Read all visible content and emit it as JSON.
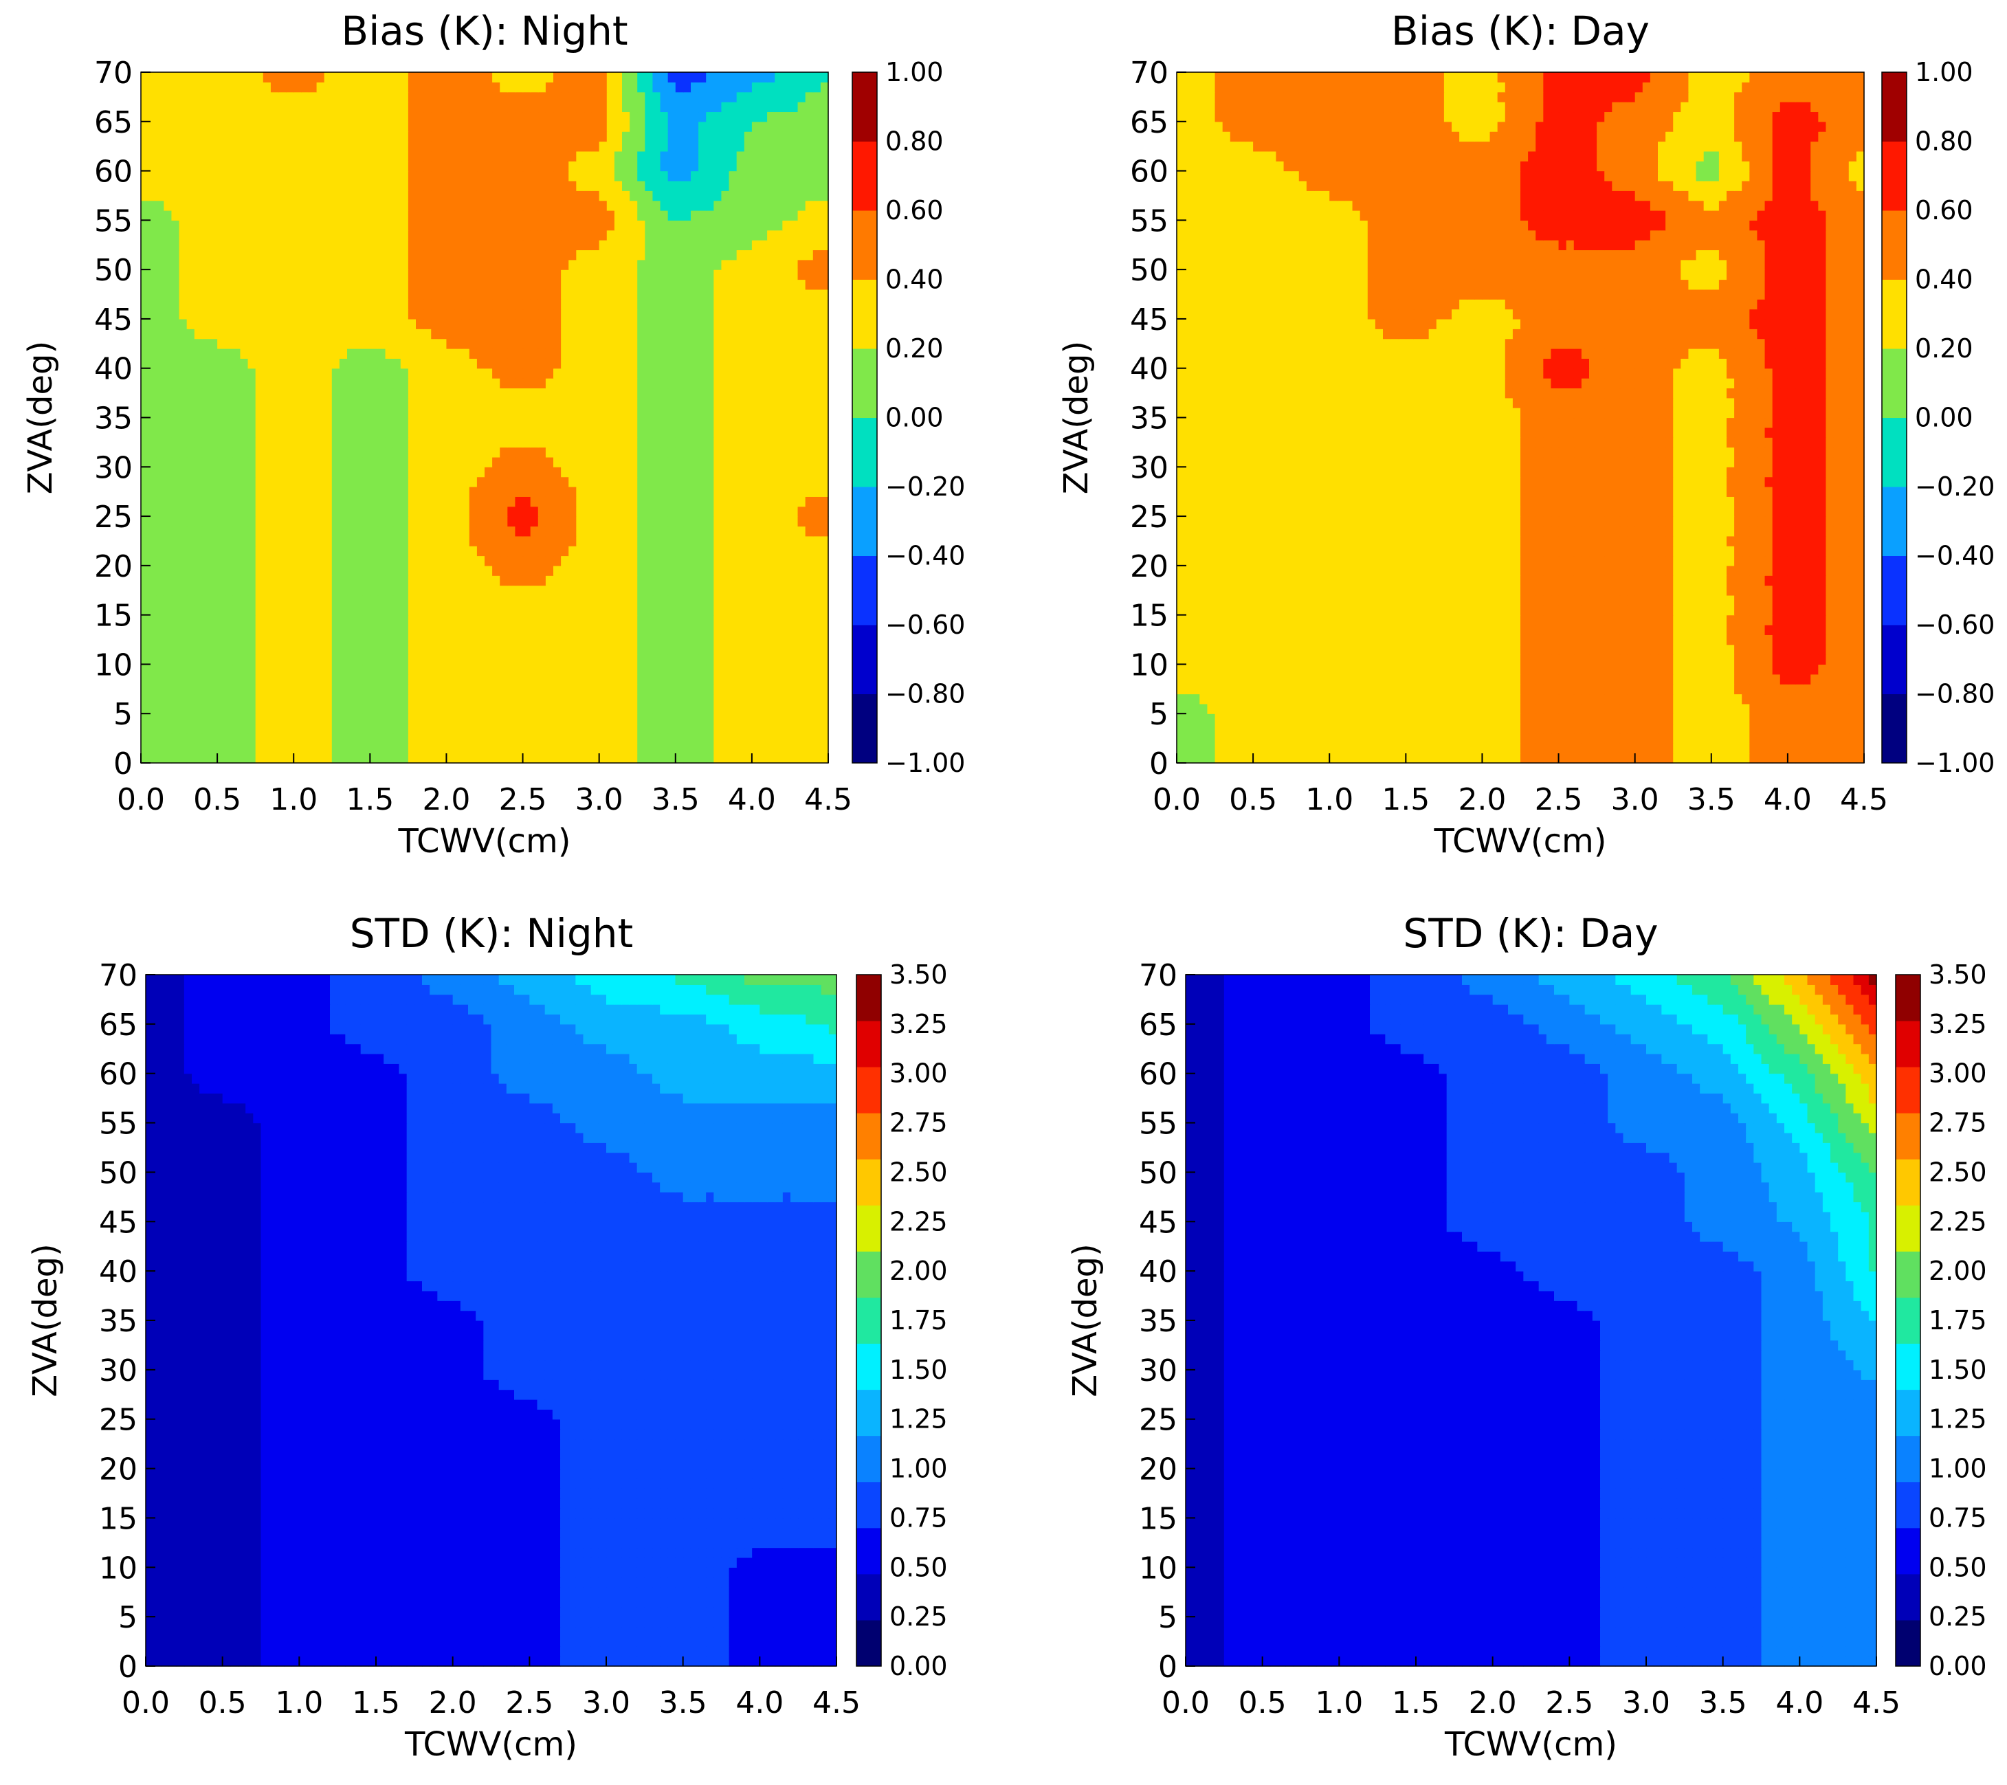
{
  "chart_data": [
    {
      "type": "heatmap",
      "title": "Bias (K): Night",
      "xlabel": "TCWV(cm)",
      "ylabel": "ZVA(deg)",
      "xlim": [
        0,
        4.5
      ],
      "ylim": [
        0,
        70
      ],
      "x": [
        0.0,
        0.5,
        1.0,
        1.5,
        2.0,
        2.5,
        3.0,
        3.5,
        4.0,
        4.5
      ],
      "y": [
        0,
        5,
        10,
        15,
        20,
        25,
        30,
        35,
        40,
        45,
        50,
        55,
        60,
        65,
        70
      ],
      "x_ticks": [
        "0.0",
        "0.5",
        "1.0",
        "1.5",
        "2.0",
        "2.5",
        "3.0",
        "3.5",
        "4.0",
        "4.5"
      ],
      "y_ticks": [
        "0",
        "5",
        "10",
        "15",
        "20",
        "25",
        "30",
        "35",
        "40",
        "45",
        "50",
        "55",
        "60",
        "65",
        "70"
      ],
      "levels": [
        -1.0,
        -0.8,
        -0.6,
        -0.4,
        -0.2,
        0.0,
        0.2,
        0.4,
        0.6,
        0.8,
        1.0
      ],
      "colorbar_labels": [
        "1.00",
        "0.80",
        "0.60",
        "0.40",
        "0.20",
        "0.00",
        "−0.20",
        "−0.40",
        "−0.60",
        "−0.80",
        "−1.00"
      ],
      "colors": [
        "#000080",
        "#0000cd",
        "#0a32ff",
        "#0aa0ff",
        "#00e0c0",
        "#80e84a",
        "#ffe000",
        "#ff7a00",
        "#ff1800",
        "#a00000"
      ],
      "grid": false,
      "z": [
        [
          0.1,
          0.1,
          0.3,
          0.1,
          0.3,
          0.3,
          0.3,
          0.1,
          0.3,
          0.3
        ],
        [
          0.1,
          0.1,
          0.3,
          0.1,
          0.3,
          0.3,
          0.3,
          0.1,
          0.3,
          0.3
        ],
        [
          0.1,
          0.1,
          0.3,
          0.1,
          0.3,
          0.3,
          0.3,
          0.1,
          0.3,
          0.3
        ],
        [
          0.1,
          0.1,
          0.3,
          0.1,
          0.3,
          0.3,
          0.3,
          0.1,
          0.3,
          0.3
        ],
        [
          0.1,
          0.1,
          0.3,
          0.1,
          0.3,
          0.5,
          0.3,
          0.1,
          0.3,
          0.3
        ],
        [
          0.1,
          0.1,
          0.3,
          0.1,
          0.3,
          0.7,
          0.3,
          0.1,
          0.3,
          0.5
        ],
        [
          0.1,
          0.1,
          0.3,
          0.1,
          0.3,
          0.5,
          0.3,
          0.1,
          0.3,
          0.3
        ],
        [
          0.1,
          0.1,
          0.3,
          0.1,
          0.3,
          0.3,
          0.3,
          0.1,
          0.3,
          0.3
        ],
        [
          0.1,
          0.1,
          0.3,
          0.1,
          0.3,
          0.5,
          0.3,
          0.1,
          0.3,
          0.3
        ],
        [
          0.1,
          0.3,
          0.3,
          0.3,
          0.5,
          0.5,
          0.3,
          0.1,
          0.3,
          0.3
        ],
        [
          0.1,
          0.3,
          0.3,
          0.3,
          0.5,
          0.5,
          0.3,
          0.1,
          0.3,
          0.5
        ],
        [
          0.1,
          0.3,
          0.3,
          0.3,
          0.5,
          0.5,
          0.5,
          0.0,
          0.1,
          0.3
        ],
        [
          0.3,
          0.3,
          0.3,
          0.3,
          0.5,
          0.5,
          0.3,
          -0.3,
          0.1,
          0.1
        ],
        [
          0.3,
          0.3,
          0.3,
          0.3,
          0.5,
          0.5,
          0.5,
          -0.3,
          0.0,
          0.1
        ],
        [
          0.3,
          0.3,
          0.5,
          0.3,
          0.5,
          0.3,
          0.5,
          -0.5,
          -0.3,
          0.0
        ]
      ]
    },
    {
      "type": "heatmap",
      "title": "Bias (K): Day",
      "xlabel": "TCWV(cm)",
      "ylabel": "ZVA(deg)",
      "xlim": [
        0,
        4.5
      ],
      "ylim": [
        0,
        70
      ],
      "x": [
        0.0,
        0.5,
        1.0,
        1.5,
        2.0,
        2.5,
        3.0,
        3.5,
        4.0,
        4.5
      ],
      "y": [
        0,
        5,
        10,
        15,
        20,
        25,
        30,
        35,
        40,
        45,
        50,
        55,
        60,
        65,
        70
      ],
      "x_ticks": [
        "0.0",
        "0.5",
        "1.0",
        "1.5",
        "2.0",
        "2.5",
        "3.0",
        "3.5",
        "4.0",
        "4.5"
      ],
      "y_ticks": [
        "0",
        "5",
        "10",
        "15",
        "20",
        "25",
        "30",
        "35",
        "40",
        "45",
        "50",
        "55",
        "60",
        "65",
        "70"
      ],
      "levels": [
        -1.0,
        -0.8,
        -0.6,
        -0.4,
        -0.2,
        0.0,
        0.2,
        0.4,
        0.6,
        0.8,
        1.0
      ],
      "colorbar_labels": [
        "1.00",
        "0.80",
        "0.60",
        "0.40",
        "0.20",
        "0.00",
        "−0.20",
        "−0.40",
        "−0.60",
        "−0.80",
        "−1.00"
      ],
      "colors": [
        "#000080",
        "#0000cd",
        "#0a32ff",
        "#0aa0ff",
        "#00e0c0",
        "#80e84a",
        "#ffe000",
        "#ff7a00",
        "#ff1800",
        "#a00000"
      ],
      "grid": false,
      "z": [
        [
          0.1,
          0.3,
          0.3,
          0.3,
          0.3,
          0.5,
          0.5,
          0.3,
          0.5,
          0.5
        ],
        [
          0.1,
          0.3,
          0.3,
          0.3,
          0.3,
          0.5,
          0.5,
          0.3,
          0.5,
          0.5
        ],
        [
          0.3,
          0.3,
          0.3,
          0.3,
          0.3,
          0.5,
          0.5,
          0.3,
          0.7,
          0.5
        ],
        [
          0.3,
          0.3,
          0.3,
          0.3,
          0.3,
          0.5,
          0.5,
          0.3,
          0.7,
          0.5
        ],
        [
          0.3,
          0.3,
          0.3,
          0.3,
          0.3,
          0.5,
          0.5,
          0.3,
          0.7,
          0.5
        ],
        [
          0.3,
          0.3,
          0.3,
          0.3,
          0.3,
          0.5,
          0.5,
          0.3,
          0.7,
          0.5
        ],
        [
          0.3,
          0.3,
          0.3,
          0.3,
          0.3,
          0.5,
          0.5,
          0.3,
          0.7,
          0.5
        ],
        [
          0.3,
          0.3,
          0.3,
          0.3,
          0.3,
          0.5,
          0.5,
          0.3,
          0.7,
          0.5
        ],
        [
          0.3,
          0.3,
          0.3,
          0.3,
          0.3,
          0.7,
          0.5,
          0.3,
          0.7,
          0.5
        ],
        [
          0.3,
          0.3,
          0.3,
          0.5,
          0.3,
          0.5,
          0.5,
          0.5,
          0.7,
          0.5
        ],
        [
          0.3,
          0.3,
          0.3,
          0.5,
          0.5,
          0.5,
          0.5,
          0.3,
          0.7,
          0.5
        ],
        [
          0.3,
          0.3,
          0.3,
          0.5,
          0.5,
          0.7,
          0.7,
          0.5,
          0.7,
          0.5
        ],
        [
          0.3,
          0.3,
          0.5,
          0.5,
          0.5,
          0.7,
          0.5,
          0.1,
          0.7,
          0.3
        ],
        [
          0.3,
          0.5,
          0.5,
          0.5,
          0.3,
          0.7,
          0.5,
          0.3,
          0.7,
          0.5
        ],
        [
          0.3,
          0.5,
          0.5,
          0.5,
          0.3,
          0.7,
          0.7,
          0.3,
          0.5,
          0.5
        ]
      ]
    },
    {
      "type": "heatmap",
      "title": "STD (K): Night",
      "xlabel": "TCWV(cm)",
      "ylabel": "ZVA(deg)",
      "xlim": [
        0,
        4.5
      ],
      "ylim": [
        0,
        70
      ],
      "x": [
        0.0,
        0.5,
        1.0,
        1.5,
        2.0,
        2.5,
        3.0,
        3.5,
        4.0,
        4.5
      ],
      "y": [
        0,
        5,
        10,
        15,
        20,
        25,
        30,
        35,
        40,
        45,
        50,
        55,
        60,
        65,
        70
      ],
      "x_ticks": [
        "0.0",
        "0.5",
        "1.0",
        "1.5",
        "2.0",
        "2.5",
        "3.0",
        "3.5",
        "4.0",
        "4.5"
      ],
      "y_ticks": [
        "0",
        "5",
        "10",
        "15",
        "20",
        "25",
        "30",
        "35",
        "40",
        "45",
        "50",
        "55",
        "60",
        "65",
        "70"
      ],
      "levels": [
        0.0,
        0.25,
        0.5,
        0.75,
        1.0,
        1.25,
        1.5,
        1.75,
        2.0,
        2.25,
        2.5,
        2.75,
        3.0,
        3.25,
        3.5
      ],
      "colorbar_labels": [
        "3.50",
        "3.25",
        "3.00",
        "2.75",
        "2.50",
        "2.25",
        "2.00",
        "1.75",
        "1.50",
        "1.25",
        "1.00",
        "0.75",
        "0.50",
        "0.25",
        "0.00"
      ],
      "colors": [
        "#000070",
        "#0000b8",
        "#0000f0",
        "#0a46ff",
        "#0a82ff",
        "#0ab4ff",
        "#00f0ff",
        "#20e8a0",
        "#60e060",
        "#d8f000",
        "#ffc800",
        "#ff8000",
        "#ff3000",
        "#e00000",
        "#900000"
      ],
      "grid": false,
      "z": [
        [
          0.35,
          0.35,
          0.65,
          0.65,
          0.65,
          0.65,
          0.9,
          0.9,
          0.65,
          0.65
        ],
        [
          0.35,
          0.35,
          0.65,
          0.65,
          0.65,
          0.65,
          0.9,
          0.9,
          0.65,
          0.65
        ],
        [
          0.35,
          0.35,
          0.65,
          0.65,
          0.65,
          0.65,
          0.9,
          0.9,
          0.65,
          0.65
        ],
        [
          0.35,
          0.35,
          0.65,
          0.65,
          0.65,
          0.65,
          0.9,
          0.9,
          0.9,
          0.9
        ],
        [
          0.35,
          0.35,
          0.65,
          0.65,
          0.65,
          0.65,
          0.9,
          0.9,
          0.9,
          0.9
        ],
        [
          0.35,
          0.35,
          0.65,
          0.65,
          0.65,
          0.65,
          0.9,
          0.9,
          0.9,
          0.9
        ],
        [
          0.35,
          0.35,
          0.65,
          0.65,
          0.65,
          0.9,
          0.9,
          0.9,
          0.9,
          0.9
        ],
        [
          0.35,
          0.35,
          0.65,
          0.65,
          0.65,
          0.9,
          0.9,
          0.9,
          0.9,
          0.9
        ],
        [
          0.35,
          0.35,
          0.65,
          0.65,
          0.9,
          0.9,
          0.9,
          0.9,
          0.9,
          0.9
        ],
        [
          0.35,
          0.35,
          0.65,
          0.65,
          0.9,
          0.9,
          0.9,
          0.9,
          0.9,
          0.9
        ],
        [
          0.35,
          0.35,
          0.65,
          0.65,
          0.9,
          0.9,
          0.9,
          1.1,
          1.1,
          1.1
        ],
        [
          0.35,
          0.35,
          0.65,
          0.65,
          0.9,
          0.9,
          1.1,
          1.1,
          1.1,
          1.1
        ],
        [
          0.35,
          0.65,
          0.65,
          0.65,
          0.9,
          1.1,
          1.1,
          1.4,
          1.4,
          1.4
        ],
        [
          0.35,
          0.65,
          0.65,
          0.9,
          0.9,
          1.1,
          1.4,
          1.4,
          1.6,
          1.8
        ],
        [
          0.35,
          0.65,
          0.65,
          0.9,
          1.1,
          1.4,
          1.6,
          1.8,
          2.1,
          2.1
        ]
      ]
    },
    {
      "type": "heatmap",
      "title": "STD (K): Day",
      "xlabel": "TCWV(cm)",
      "ylabel": "ZVA(deg)",
      "xlim": [
        0,
        4.5
      ],
      "ylim": [
        0,
        70
      ],
      "x": [
        0.0,
        0.5,
        1.0,
        1.5,
        2.0,
        2.5,
        3.0,
        3.5,
        4.0,
        4.5
      ],
      "y": [
        0,
        5,
        10,
        15,
        20,
        25,
        30,
        35,
        40,
        45,
        50,
        55,
        60,
        65,
        70
      ],
      "x_ticks": [
        "0.0",
        "0.5",
        "1.0",
        "1.5",
        "2.0",
        "2.5",
        "3.0",
        "3.5",
        "4.0",
        "4.5"
      ],
      "y_ticks": [
        "0",
        "5",
        "10",
        "15",
        "20",
        "25",
        "30",
        "35",
        "40",
        "45",
        "50",
        "55",
        "60",
        "65",
        "70"
      ],
      "levels": [
        0.0,
        0.25,
        0.5,
        0.75,
        1.0,
        1.25,
        1.5,
        1.75,
        2.0,
        2.25,
        2.5,
        2.75,
        3.0,
        3.25,
        3.5
      ],
      "colorbar_labels": [
        "3.50",
        "3.25",
        "3.00",
        "2.75",
        "2.50",
        "2.25",
        "2.00",
        "1.75",
        "1.50",
        "1.25",
        "1.00",
        "0.75",
        "0.50",
        "0.25",
        "0.00"
      ],
      "colors": [
        "#000070",
        "#0000b8",
        "#0000f0",
        "#0a46ff",
        "#0a82ff",
        "#0ab4ff",
        "#00f0ff",
        "#20e8a0",
        "#60e060",
        "#d8f000",
        "#ffc800",
        "#ff8000",
        "#ff3000",
        "#e00000",
        "#900000"
      ],
      "grid": false,
      "z": [
        [
          0.35,
          0.65,
          0.65,
          0.65,
          0.65,
          0.65,
          0.9,
          0.9,
          1.1,
          1.1
        ],
        [
          0.35,
          0.65,
          0.65,
          0.65,
          0.65,
          0.65,
          0.9,
          0.9,
          1.1,
          1.1
        ],
        [
          0.35,
          0.65,
          0.65,
          0.65,
          0.65,
          0.65,
          0.9,
          0.9,
          1.1,
          1.1
        ],
        [
          0.35,
          0.65,
          0.65,
          0.65,
          0.65,
          0.65,
          0.9,
          0.9,
          1.1,
          1.1
        ],
        [
          0.35,
          0.65,
          0.65,
          0.65,
          0.65,
          0.65,
          0.9,
          0.9,
          1.1,
          1.1
        ],
        [
          0.35,
          0.65,
          0.65,
          0.65,
          0.65,
          0.65,
          0.9,
          0.9,
          1.1,
          1.1
        ],
        [
          0.35,
          0.65,
          0.65,
          0.65,
          0.65,
          0.65,
          0.9,
          0.9,
          1.1,
          1.3
        ],
        [
          0.35,
          0.65,
          0.65,
          0.65,
          0.65,
          0.65,
          0.9,
          0.9,
          1.1,
          1.5
        ],
        [
          0.35,
          0.65,
          0.65,
          0.65,
          0.65,
          0.9,
          0.9,
          0.9,
          1.1,
          1.8
        ],
        [
          0.35,
          0.65,
          0.65,
          0.65,
          0.9,
          0.9,
          0.9,
          1.1,
          1.3,
          1.8
        ],
        [
          0.35,
          0.65,
          0.65,
          0.65,
          0.9,
          0.9,
          0.9,
          1.1,
          1.4,
          2.0
        ],
        [
          0.35,
          0.65,
          0.65,
          0.65,
          0.9,
          0.9,
          1.1,
          1.1,
          1.6,
          2.4
        ],
        [
          0.35,
          0.65,
          0.65,
          0.65,
          0.9,
          0.9,
          1.1,
          1.4,
          1.9,
          2.7
        ],
        [
          0.35,
          0.65,
          0.65,
          0.9,
          0.9,
          1.1,
          1.4,
          1.6,
          2.3,
          3.1
        ],
        [
          0.35,
          0.65,
          0.65,
          0.9,
          1.1,
          1.4,
          1.6,
          2.0,
          2.7,
          3.6
        ]
      ]
    }
  ]
}
